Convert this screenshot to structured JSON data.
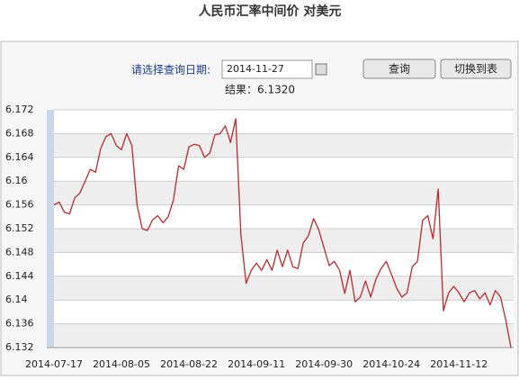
{
  "controls": {
    "date_label": "请选择查询日期:",
    "date_value": "2014-11-27",
    "buttons": [
      "查询",
      "切换到表"
    ],
    "result": "结果：6.1320"
  },
  "chart_data": {
    "type": "line",
    "title": "人民币汇率中间价 对美元",
    "categories": [
      "2014-07-17",
      null,
      null,
      null,
      null,
      null,
      null,
      null,
      null,
      null,
      null,
      null,
      null,
      "2014-08-05",
      null,
      null,
      null,
      null,
      null,
      null,
      null,
      null,
      null,
      null,
      null,
      null,
      "2014-08-22",
      null,
      null,
      null,
      null,
      null,
      null,
      null,
      null,
      null,
      null,
      null,
      null,
      "2014-09-11",
      null,
      null,
      null,
      null,
      null,
      null,
      null,
      null,
      null,
      null,
      null,
      null,
      "2014-09-30",
      null,
      null,
      null,
      null,
      null,
      null,
      null,
      null,
      null,
      null,
      null,
      null,
      "2014-10-24",
      null,
      null,
      null,
      null,
      null,
      null,
      null,
      null,
      null,
      null,
      null,
      null,
      "2014-11-12",
      null,
      null,
      null,
      null,
      null,
      null,
      null,
      null,
      null,
      null
    ],
    "series": [
      {
        "name": "对美元",
        "color": "#c0282d",
        "values": [
          6.156,
          6.1565,
          6.1548,
          6.1545,
          6.1572,
          6.158,
          6.16,
          6.162,
          6.1615,
          6.1655,
          6.1675,
          6.168,
          6.166,
          6.1653,
          6.168,
          6.166,
          6.156,
          6.152,
          6.1517,
          6.1535,
          6.1542,
          6.153,
          6.154,
          6.1568,
          6.1626,
          6.162,
          6.1658,
          6.1662,
          6.166,
          6.164,
          6.1647,
          6.1678,
          6.168,
          6.1693,
          6.1665,
          6.1705,
          6.151,
          6.1428,
          6.145,
          6.1462,
          6.145,
          6.1468,
          6.145,
          6.1484,
          6.1456,
          6.1484,
          6.1456,
          6.1453,
          6.1496,
          6.1508,
          6.1537,
          6.1518,
          6.1488,
          6.1458,
          6.1465,
          6.145,
          6.1411,
          6.145,
          6.1397,
          6.1405,
          6.1432,
          6.1405,
          6.1435,
          6.1453,
          6.1465,
          6.1443,
          6.142,
          6.1405,
          6.1412,
          6.1456,
          6.1465,
          6.1534,
          6.1542,
          6.1503,
          6.1587,
          6.1382,
          6.1412,
          6.1423,
          6.1412,
          6.1397,
          6.1412,
          6.1416,
          6.1402,
          6.1412,
          6.1392,
          6.1416,
          6.1405,
          6.1367,
          6.132
        ]
      }
    ],
    "ylim": [
      6.132,
      6.172
    ],
    "yticks": [
      6.132,
      6.136,
      6.14,
      6.144,
      6.148,
      6.152,
      6.156,
      6.16,
      6.164,
      6.168,
      6.172
    ],
    "grid": true
  }
}
